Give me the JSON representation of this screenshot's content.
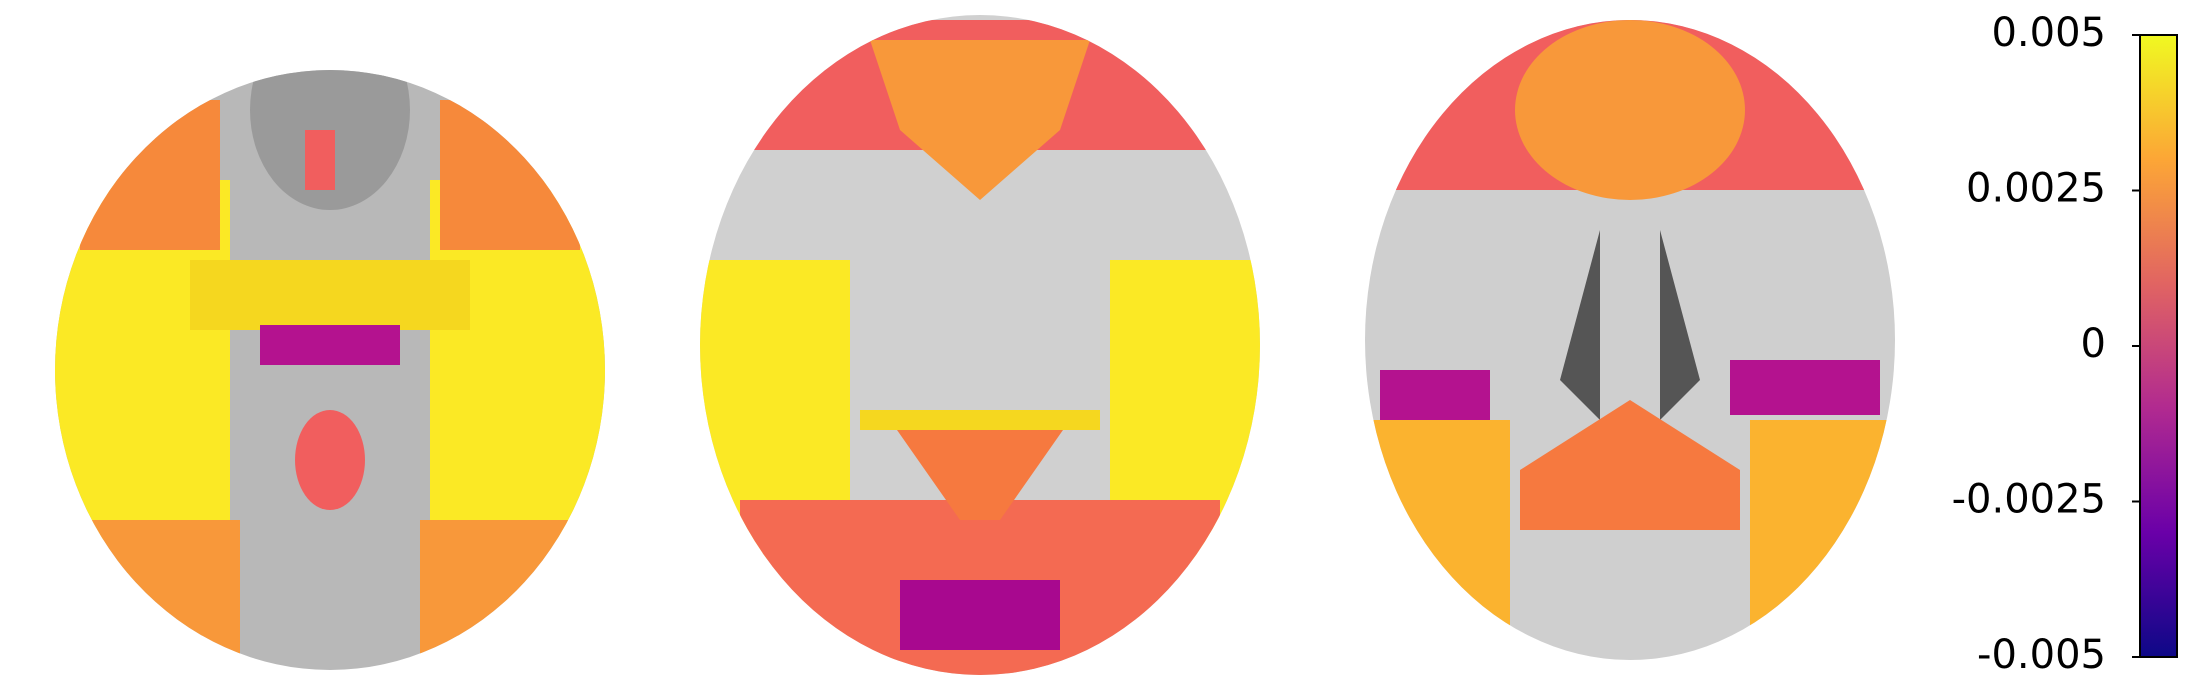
{
  "colorbar": {
    "vlim": [
      -0.005,
      0.005
    ],
    "ticks": [
      0.005,
      0.0025,
      0,
      -0.0025,
      -0.005
    ],
    "colors": [
      "#0d0887",
      "#6a00a8",
      "#b12a90",
      "#e16462",
      "#fca636",
      "#f0f921"
    ]
  }
}
